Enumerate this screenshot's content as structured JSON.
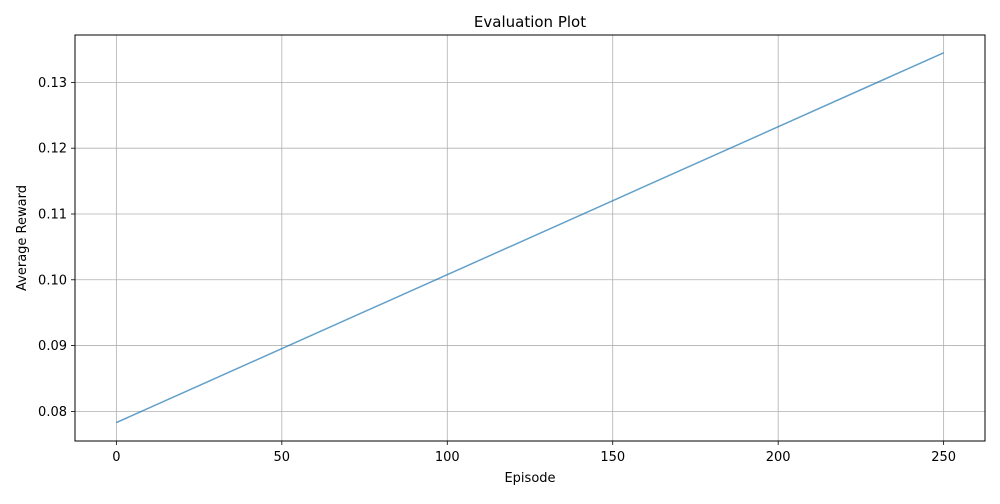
{
  "chart_data": {
    "type": "line",
    "title": "Evaluation Plot",
    "xlabel": "Episode",
    "ylabel": "Average Reward",
    "xlim": [
      -12.5,
      262.5
    ],
    "ylim": [
      0.0755,
      0.1372
    ],
    "x_ticks": [
      0,
      50,
      100,
      150,
      200,
      250
    ],
    "y_ticks": [
      0.08,
      0.09,
      0.1,
      0.11,
      0.12,
      0.13
    ],
    "x_tick_labels": [
      "0",
      "50",
      "100",
      "150",
      "200",
      "250"
    ],
    "y_tick_labels": [
      "0.08",
      "0.09",
      "0.10",
      "0.11",
      "0.12",
      "0.13"
    ],
    "grid": true,
    "series": [
      {
        "color": "#1f77b4",
        "x": [
          0,
          250
        ],
        "y": [
          0.0783,
          0.1345
        ]
      }
    ]
  }
}
